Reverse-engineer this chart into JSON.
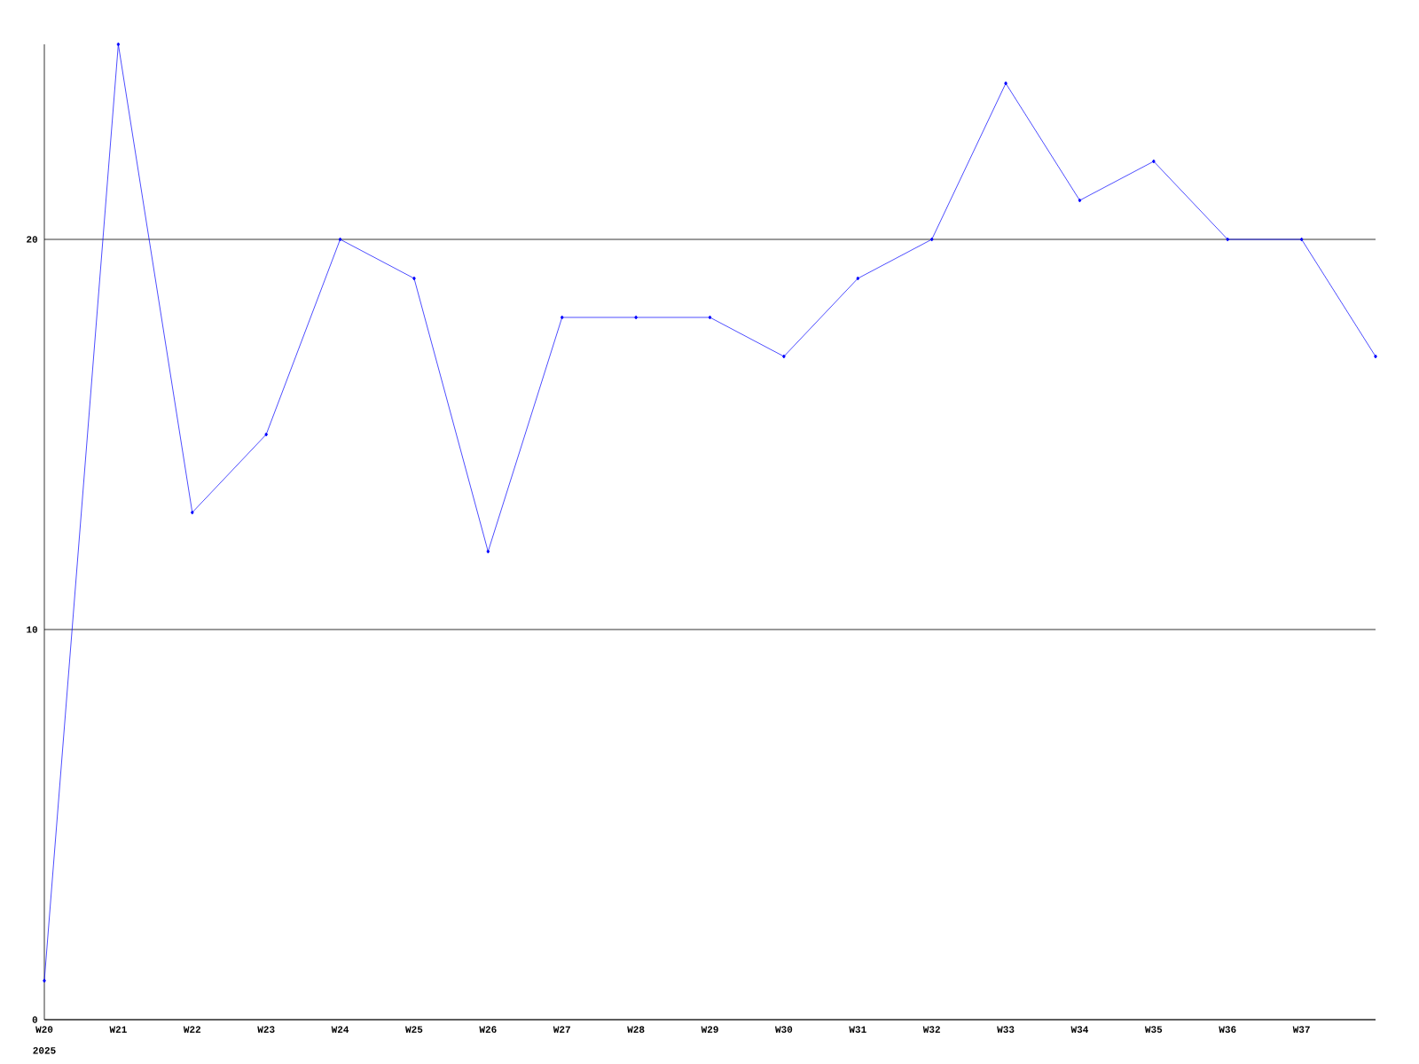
{
  "chart_data": {
    "type": "line",
    "categories": [
      "W20",
      "W21",
      "W22",
      "W23",
      "W24",
      "W25",
      "W26",
      "W27",
      "W28",
      "W29",
      "W30",
      "W31",
      "W32",
      "W33",
      "W34",
      "W35",
      "W36",
      "W37",
      null
    ],
    "values": [
      1,
      25,
      13,
      15,
      20,
      19,
      12,
      18,
      18,
      18,
      17,
      19,
      20,
      24,
      21,
      22,
      20,
      20,
      17
    ],
    "color": "#0000ff",
    "marker": "diamond",
    "ylim": [
      0,
      25
    ],
    "yticks": [
      0,
      10,
      20
    ],
    "grid": "y",
    "annotations": [
      "2025"
    ]
  }
}
